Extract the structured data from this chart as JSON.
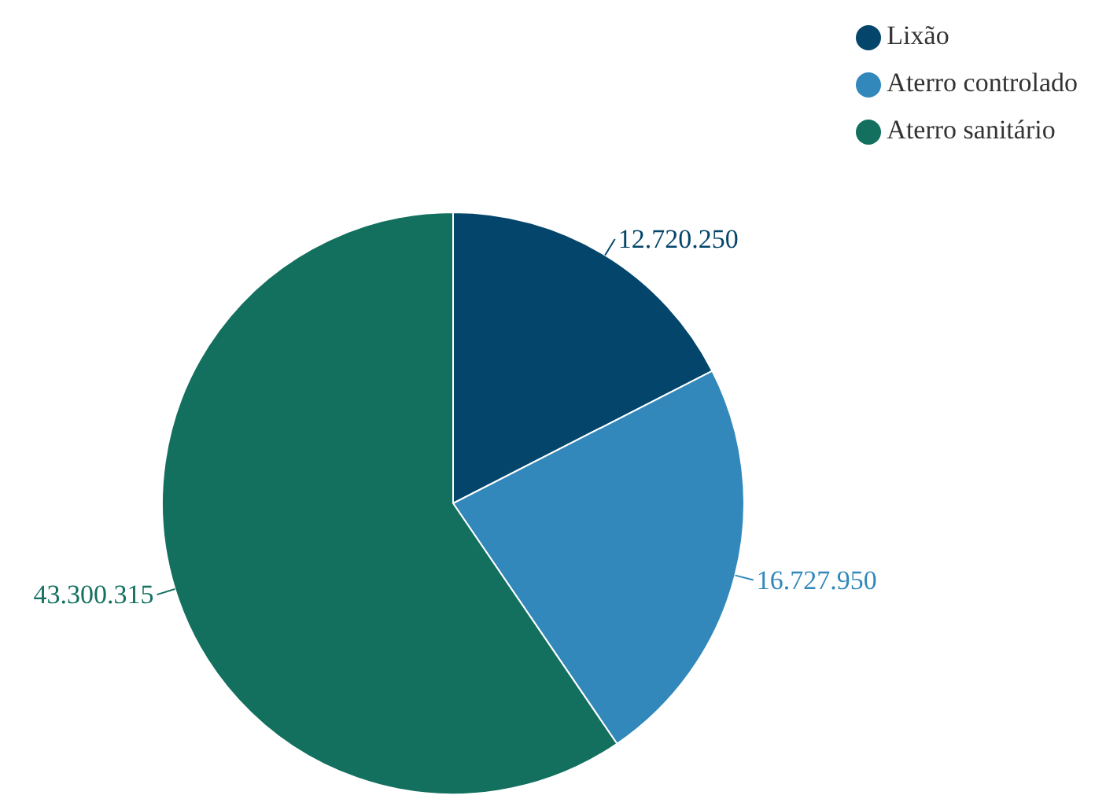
{
  "chart_data": {
    "type": "pie",
    "categories": [
      "Lixão",
      "Aterro controlado",
      "Aterro sanitário"
    ],
    "values": [
      12720250,
      16727950,
      43300315
    ],
    "colors": [
      "#04466b",
      "#3288bb",
      "#13705f"
    ],
    "value_labels": [
      "12.720.250",
      "16.727.950",
      "43.300.315"
    ],
    "legend": "top right"
  }
}
